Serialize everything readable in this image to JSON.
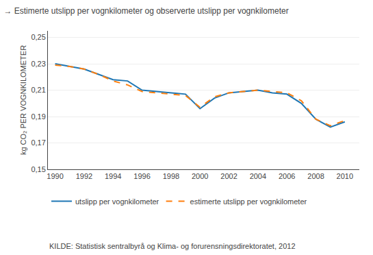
{
  "chart_data": {
    "type": "line",
    "title": "→ Estimerte utslipp per vognkilometer og observerte utslipp per vognkilometer",
    "y_label": "kg CO₂ PER VOGNKILOMETER",
    "annotations": [
      "KILDE: Statistisk sentralbyrå og Klima- og forurensningsdirektoratet, 2012"
    ],
    "series": [
      {
        "name": "utslipp per vognkilometer",
        "line_style": "solid",
        "x": [
          1990,
          1991,
          1992,
          1993,
          1994,
          1995,
          1996,
          1997,
          1998,
          1999,
          2000,
          2001,
          2002,
          2003,
          2004,
          2005,
          2006,
          2007,
          2008,
          2009,
          2010
        ],
        "values": [
          0.23,
          0.228,
          0.226,
          0.222,
          0.218,
          0.217,
          0.21,
          0.209,
          0.208,
          0.207,
          0.196,
          0.204,
          0.208,
          0.209,
          0.21,
          0.208,
          0.207,
          0.2,
          0.188,
          0.182,
          0.186
        ]
      },
      {
        "name": "estimerte utslipp per vognkilometer",
        "line_style": "dashed",
        "x": [
          1990,
          1991,
          1992,
          1993,
          1994,
          1995,
          1996,
          1997,
          1998,
          1999,
          2000,
          2001,
          2002,
          2003,
          2004,
          2005,
          2006,
          2007,
          2008,
          2009,
          2010
        ],
        "values": [
          0.229,
          0.228,
          0.226,
          0.222,
          0.217,
          0.214,
          0.209,
          0.208,
          0.207,
          0.206,
          0.197,
          0.205,
          0.208,
          0.209,
          0.21,
          0.209,
          0.208,
          0.202,
          0.188,
          0.183,
          0.187
        ]
      }
    ],
    "xlim": [
      1989.5,
      2011.0
    ],
    "xticks": [
      1990,
      1992,
      1994,
      1996,
      1998,
      2000,
      2002,
      2004,
      2006,
      2008,
      2010
    ],
    "ylim": [
      0.15,
      0.255
    ],
    "yticks": [
      {
        "value": 0.15,
        "label": "0,15"
      },
      {
        "value": 0.17,
        "label": "0,17"
      },
      {
        "value": 0.19,
        "label": "0,19"
      },
      {
        "value": 0.21,
        "label": "0,21"
      },
      {
        "value": 0.23,
        "label": "0,23"
      },
      {
        "value": 0.25,
        "label": "0,25"
      }
    ],
    "grid": "y",
    "legend": "bottom"
  }
}
